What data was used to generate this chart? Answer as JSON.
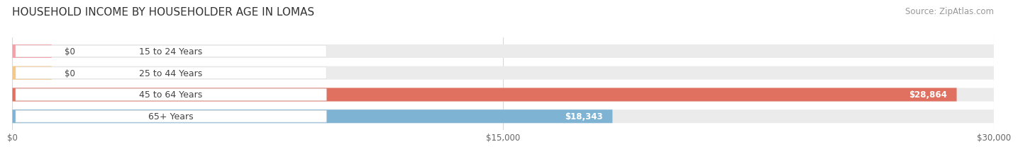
{
  "title": "HOUSEHOLD INCOME BY HOUSEHOLDER AGE IN LOMAS",
  "source": "Source: ZipAtlas.com",
  "categories": [
    "15 to 24 Years",
    "25 to 44 Years",
    "45 to 64 Years",
    "65+ Years"
  ],
  "values": [
    0,
    0,
    28864,
    18343
  ],
  "bar_colors": [
    "#f4a0a8",
    "#f5c88a",
    "#e07060",
    "#7fb3d3"
  ],
  "bar_bg_color": "#ebebeb",
  "label_bg_color": "#ffffff",
  "xlim": [
    0,
    30000
  ],
  "xticks": [
    0,
    15000,
    30000
  ],
  "xtick_labels": [
    "$0",
    "$15,000",
    "$30,000"
  ],
  "title_fontsize": 11,
  "source_fontsize": 8.5,
  "tick_fontsize": 8.5,
  "cat_fontsize": 9,
  "value_fontsize": 8.5,
  "background_color": "#ffffff",
  "bar_height": 0.62,
  "grid_color": "#d8d8d8",
  "cat_text_color": "#444444",
  "value_text_color_dark": "#444444",
  "value_text_color_light": "#ffffff"
}
